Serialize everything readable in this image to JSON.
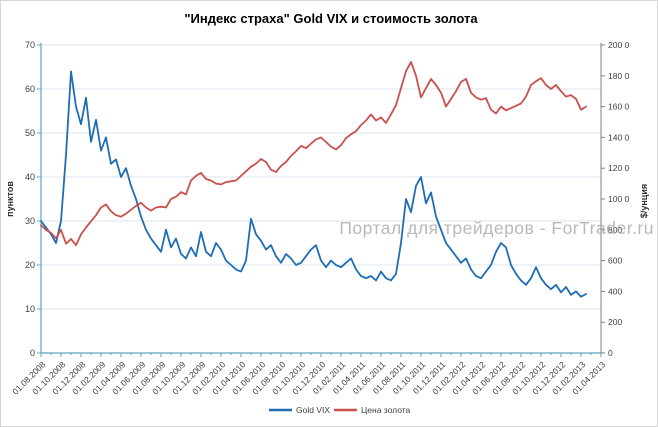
{
  "title": "\"Индекс страха\" Gold VIX и стоимость золота",
  "watermark": "Портал для трейдеров - ForTrader.ru",
  "colors": {
    "vix_line": "#1e6db5",
    "gold_line": "#c9504c",
    "grid": "#d9e6ee",
    "axis_primary": "#5fa5bd",
    "axis_secondary": "#808080",
    "tick_text": "#3f3f3f",
    "watermark": "#a8a8a8",
    "title_text": "#000000"
  },
  "left_axis": {
    "title": "пунктов",
    "tick_values": [
      0,
      10,
      20,
      30,
      40,
      50,
      60,
      70
    ],
    "tick_labels": [
      "0",
      "10",
      "20",
      "30",
      "40",
      "50",
      "60",
      "70"
    ]
  },
  "right_axis": {
    "title": "$/унция",
    "tick_values": [
      0,
      200,
      400,
      600,
      800,
      1000,
      1200,
      1400,
      1600,
      1800,
      2000
    ],
    "tick_labels": [
      "0",
      "200",
      "400",
      "600",
      "800",
      "100 0",
      "120 0",
      "140 0",
      "160 0",
      "180 0",
      "200 0"
    ]
  },
  "x_axis": {
    "tick_months": [
      0,
      2,
      4,
      6,
      8,
      10,
      12,
      14,
      16,
      18,
      20,
      22,
      24,
      26,
      28,
      30,
      32,
      34,
      36,
      38,
      40,
      42,
      44,
      46,
      48,
      50,
      52,
      54,
      56
    ],
    "labels": [
      "01.08.2008",
      "01.10.2008",
      "01.12.2008",
      "01.02.2009",
      "01.04.2009",
      "01.06.2009",
      "01.08.2009",
      "01.10.2009",
      "01.12.2009",
      "01.02.2010",
      "01.04.2010",
      "01.06.2010",
      "01.08.2010",
      "01.10.2010",
      "01.12.2010",
      "01.02.2011",
      "01.04.2011",
      "01.06.2011",
      "01.08.2011",
      "01.10.2011",
      "01.12.2011",
      "01.02.2012",
      "01.04.2012",
      "01.06.2012",
      "01.08.2012",
      "01.10.2012",
      "01.12.2012",
      "01.02.2013",
      "01.04.2013"
    ]
  },
  "legend": {
    "vix_label": "Gold VIX",
    "gold_label": "Цена золота"
  },
  "chart_data": {
    "type": "line",
    "title": "\"Индекс страха\" Gold VIX и стоимость золота",
    "x_unit": "months since 01.08.2008",
    "x_start": 0,
    "x_step": 0.5,
    "x_axis_span_months": 56,
    "left_ylabel": "пунктов",
    "right_ylabel": "$/унция",
    "left_ylim": [
      0,
      70
    ],
    "right_ylim": [
      0,
      2000
    ],
    "grid": "horizontal",
    "legend_position": "bottom",
    "series": [
      {
        "name": "Gold VIX",
        "axis": "left",
        "color": "#1e6db5",
        "values": [
          30,
          28.5,
          27,
          25,
          30,
          45,
          64,
          56,
          52,
          58,
          48,
          53,
          46,
          49,
          43,
          44,
          40,
          42,
          38,
          35,
          31,
          28,
          26,
          24.5,
          23,
          28,
          24,
          26,
          22.5,
          21.5,
          24,
          22,
          27.5,
          23,
          22,
          25,
          23.5,
          21,
          20,
          19,
          18.5,
          21,
          30.5,
          27,
          25.5,
          23.5,
          24.5,
          22,
          20.5,
          22.5,
          21.5,
          20,
          20.5,
          22,
          23.5,
          24.5,
          21,
          19.5,
          21,
          20,
          19.5,
          20.5,
          21.5,
          19,
          17.5,
          17,
          17.5,
          16.5,
          18.5,
          17,
          16.5,
          18,
          25,
          35,
          32,
          38,
          40,
          34,
          36.5,
          31,
          28,
          25,
          23.5,
          22,
          20.5,
          21.5,
          19,
          17.5,
          17,
          18.5,
          20,
          23,
          25,
          24,
          20,
          18,
          16.5,
          15.5,
          17,
          19.5,
          17,
          15.5,
          14.5,
          15.5,
          13.8,
          15,
          13.2,
          14,
          12.8,
          13.4
        ]
      },
      {
        "name": "Цена золота",
        "axis": "right",
        "color": "#c9504c",
        "values": [
          830,
          800,
          780,
          745,
          800,
          710,
          740,
          700,
          770,
          815,
          855,
          895,
          945,
          965,
          920,
          895,
          885,
          905,
          930,
          955,
          975,
          945,
          925,
          945,
          950,
          945,
          1000,
          1015,
          1045,
          1030,
          1120,
          1150,
          1170,
          1130,
          1120,
          1100,
          1095,
          1110,
          1115,
          1120,
          1150,
          1180,
          1210,
          1230,
          1260,
          1240,
          1190,
          1175,
          1215,
          1240,
          1280,
          1310,
          1345,
          1330,
          1360,
          1387,
          1400,
          1370,
          1340,
          1322,
          1350,
          1395,
          1420,
          1440,
          1480,
          1510,
          1549,
          1510,
          1530,
          1494,
          1550,
          1610,
          1720,
          1830,
          1890,
          1800,
          1660,
          1720,
          1780,
          1740,
          1690,
          1600,
          1650,
          1700,
          1760,
          1780,
          1690,
          1660,
          1645,
          1655,
          1580,
          1555,
          1600,
          1575,
          1590,
          1605,
          1620,
          1665,
          1740,
          1765,
          1785,
          1740,
          1715,
          1740,
          1700,
          1665,
          1675,
          1650,
          1580,
          1600
        ]
      }
    ]
  }
}
